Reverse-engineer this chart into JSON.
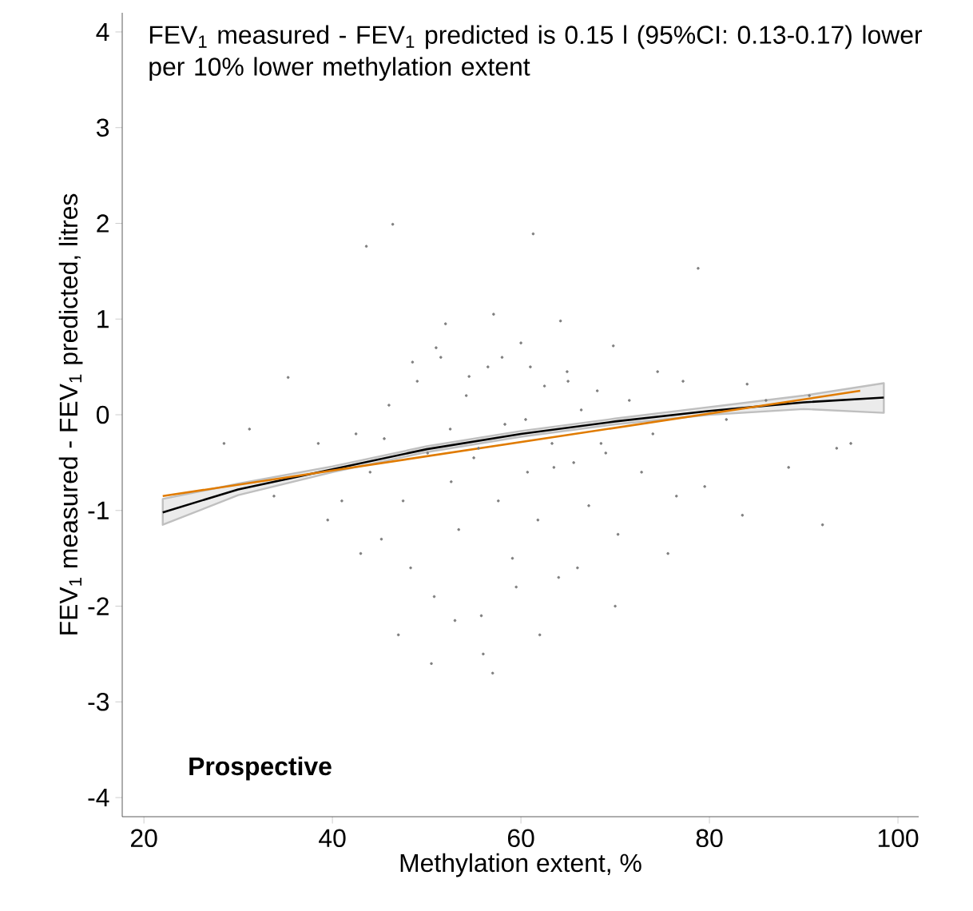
{
  "chart_data": {
    "type": "scatter",
    "xlabel": "Methylation extent, %",
    "ylabel": "FEV$_{1}$ measured - FEV$_{1}$ predicted, litres",
    "annotations": [
      "FEV$_{1}$ measured - FEV$_{1}$ predicted is 0.15 l (95%CI: 0.13-0.17) lower per 10% lower methylation extent",
      "Prospective"
    ],
    "xlim": [
      17.7,
      102.2
    ],
    "ylim": [
      -4.2,
      4.2
    ],
    "xticks": [
      20,
      40,
      60,
      80,
      100
    ],
    "yticks": [
      -4,
      -3,
      -2,
      -1,
      0,
      1,
      2,
      3,
      4
    ],
    "series": [
      {
        "color": "#7f7f7f",
        "x": [
          46.4,
          61.3,
          43.6,
          78.8,
          35.3,
          52.0,
          57.1,
          64.2,
          69.8,
          74.5,
          84.0,
          90.6,
          93.5,
          28.5,
          31.2,
          33.8,
          38.5,
          41.0,
          42.5,
          44.0,
          45.2,
          46.0,
          47.5,
          48.3,
          49.0,
          50.1,
          50.8,
          51.5,
          52.6,
          53.4,
          54.2,
          55.0,
          55.8,
          56.5,
          57.6,
          58.3,
          59.1,
          60.0,
          60.7,
          61.8,
          62.5,
          63.3,
          64.0,
          64.9,
          65.6,
          66.4,
          67.2,
          68.1,
          69.0,
          70.3,
          71.5,
          72.8,
          74.0,
          75.6,
          77.2,
          79.5,
          81.8,
          83.5,
          86.0,
          88.4,
          92.0,
          95.0,
          47.0,
          50.5,
          53.0,
          56.0,
          59.5,
          62.0,
          66.0,
          70.0,
          48.5,
          51.0,
          54.5,
          58.0,
          61.0,
          65.0,
          45.5,
          52.5,
          60.5,
          68.5,
          63.5,
          55.5,
          39.5,
          76.5,
          43.0,
          57.0
        ],
        "values": [
          1.99,
          1.89,
          1.76,
          1.53,
          0.39,
          0.95,
          1.05,
          0.98,
          0.72,
          0.45,
          0.32,
          0.2,
          -0.35,
          -0.3,
          -0.15,
          -0.85,
          -0.3,
          -0.9,
          -0.2,
          -0.6,
          -1.3,
          0.1,
          -0.9,
          -1.6,
          0.35,
          -0.4,
          -1.9,
          0.6,
          -0.7,
          -1.2,
          0.2,
          -0.45,
          -2.1,
          0.5,
          -0.9,
          -0.1,
          -1.5,
          0.75,
          -0.6,
          -1.1,
          0.3,
          -0.3,
          -1.7,
          0.45,
          -0.5,
          0.05,
          -0.95,
          0.25,
          -0.4,
          -1.25,
          0.15,
          -0.6,
          -0.2,
          -1.45,
          0.35,
          -0.75,
          -0.05,
          -1.05,
          0.15,
          -0.55,
          -1.15,
          -0.3,
          -2.3,
          -2.6,
          -2.15,
          -2.5,
          -1.8,
          -2.3,
          -1.6,
          -2.0,
          0.55,
          0.7,
          0.4,
          0.6,
          0.5,
          0.35,
          -0.25,
          -0.15,
          -0.05,
          -0.3,
          -0.55,
          -0.35,
          -1.1,
          -0.85,
          -1.45,
          -2.7
        ]
      },
      {
        "type": "line",
        "color": "#000000",
        "x": [
          22,
          30,
          40,
          50,
          60,
          70,
          80,
          90,
          98.5
        ],
        "values": [
          -1.02,
          -0.78,
          -0.57,
          -0.36,
          -0.2,
          -0.07,
          0.04,
          0.13,
          0.18
        ],
        "lower": [
          -1.15,
          -0.84,
          -0.6,
          -0.39,
          -0.23,
          -0.1,
          0.0,
          0.06,
          0.02
        ],
        "upper": [
          -0.88,
          -0.72,
          -0.54,
          -0.33,
          -0.17,
          -0.04,
          0.08,
          0.2,
          0.33
        ]
      },
      {
        "type": "line",
        "color": "#e07b00",
        "x": [
          22,
          96
        ],
        "values": [
          -0.85,
          0.25
        ]
      }
    ]
  }
}
